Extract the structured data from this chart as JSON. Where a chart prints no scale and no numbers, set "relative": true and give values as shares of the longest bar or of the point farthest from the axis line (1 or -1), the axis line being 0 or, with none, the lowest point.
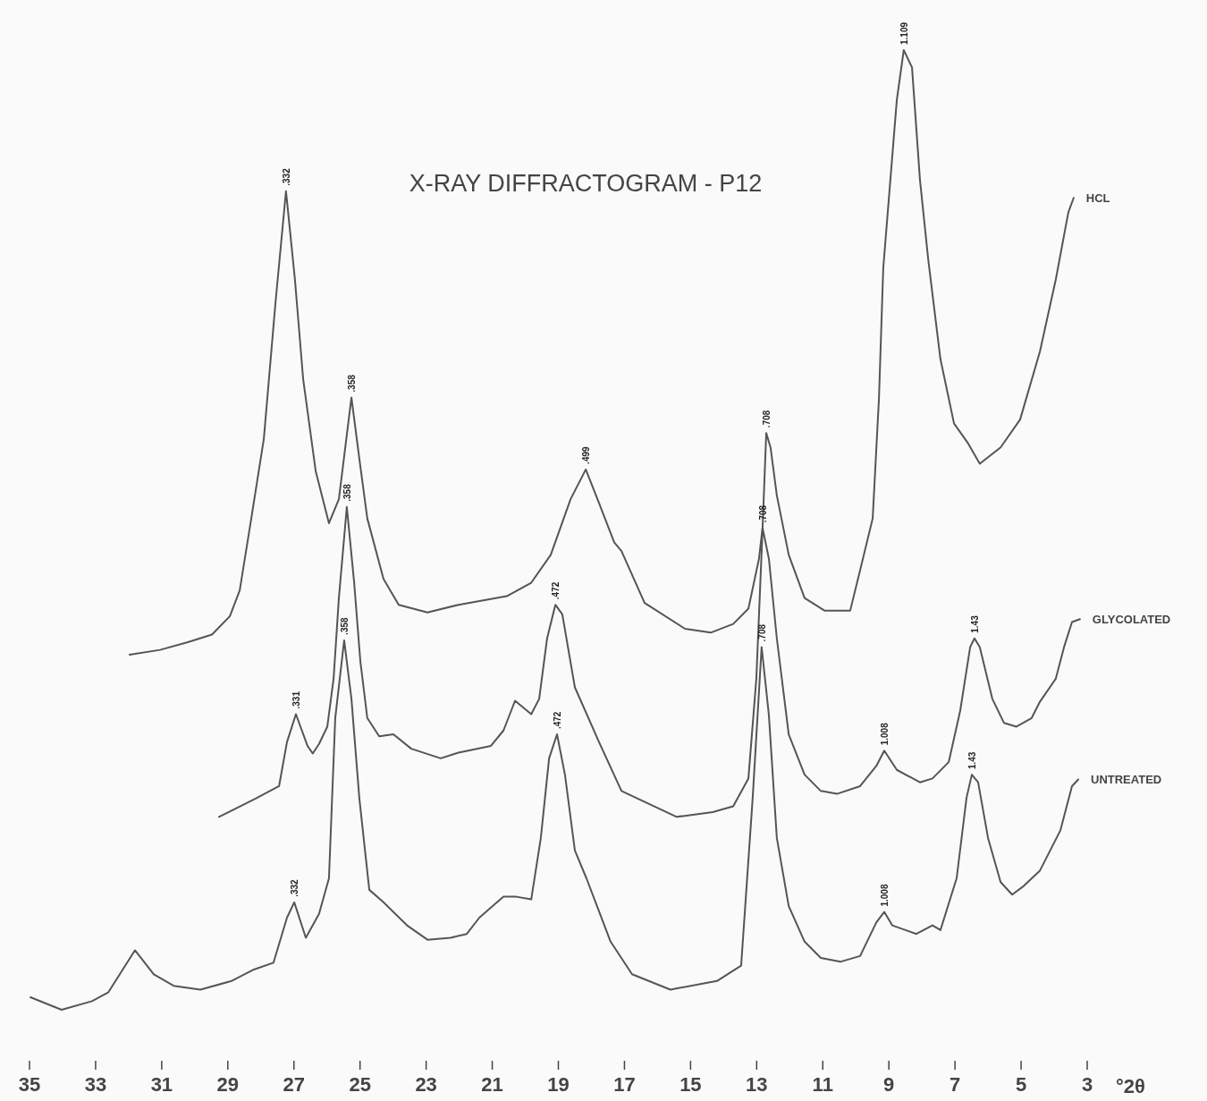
{
  "chart_data": {
    "type": "line",
    "title": "X-RAY DIFFRACTOGRAM - P12",
    "xlabel": "°2θ",
    "relative": true,
    "grid": false,
    "legend": false,
    "tick_labels": "x",
    "marker": "none",
    "line_style": "solid",
    "xlim": [
      35,
      3
    ],
    "xticks": [
      35,
      33,
      31,
      29,
      27,
      25,
      23,
      21,
      19,
      17,
      15,
      13,
      11,
      9,
      7,
      5,
      3
    ],
    "series": [
      {
        "name": "HCL",
        "color": "#555555",
        "x": [
          31.97,
          31.05,
          30.21,
          29.48,
          28.94,
          28.64,
          28.29,
          27.91,
          27.56,
          27.24,
          26.97,
          26.72,
          26.34,
          25.94,
          25.64,
          25.26,
          25.02,
          24.78,
          24.29,
          23.83,
          22.96,
          22.02,
          20.56,
          19.82,
          19.23,
          18.63,
          18.17,
          17.77,
          17.31,
          17.09,
          16.39,
          15.17,
          14.39,
          13.71,
          13.25,
          12.93,
          12.82,
          12.71,
          12.58,
          12.39,
          12.03,
          11.55,
          10.95,
          10.17,
          9.87,
          9.49,
          9.3,
          9.17,
          8.76,
          8.55,
          8.3,
          8.06,
          7.81,
          7.44,
          7.03,
          6.6,
          6.25,
          5.62,
          5.03,
          4.43,
          3.95,
          3.57,
          3.41
        ],
        "values": [
          0.37,
          0.375,
          0.383,
          0.391,
          0.41,
          0.437,
          0.512,
          0.595,
          0.736,
          0.853,
          0.761,
          0.657,
          0.561,
          0.507,
          0.532,
          0.638,
          0.574,
          0.512,
          0.449,
          0.422,
          0.414,
          0.422,
          0.431,
          0.445,
          0.474,
          0.532,
          0.563,
          0.528,
          0.487,
          0.478,
          0.424,
          0.397,
          0.393,
          0.402,
          0.418,
          0.47,
          0.503,
          0.601,
          0.586,
          0.536,
          0.474,
          0.429,
          0.416,
          0.416,
          0.458,
          0.512,
          0.637,
          0.773,
          0.948,
          1,
          0.982,
          0.865,
          0.782,
          0.678,
          0.611,
          0.59,
          0.569,
          0.586,
          0.615,
          0.686,
          0.761,
          0.831,
          0.846
        ]
      },
      {
        "name": "GLYCOLATED",
        "color": "#555555",
        "x": [
          29.27,
          28.16,
          27.45,
          27.21,
          26.94,
          26.59,
          26.43,
          26.24,
          25.99,
          25.8,
          25.64,
          25.4,
          25.18,
          24.99,
          24.78,
          24.42,
          23.99,
          23.45,
          22.56,
          22.02,
          21.04,
          20.66,
          20.31,
          19.82,
          19.58,
          19.34,
          19.09,
          18.88,
          18.5,
          17.77,
          17.09,
          15.42,
          14.33,
          13.71,
          13.25,
          13.01,
          12.82,
          12.63,
          12.39,
          12.03,
          11.55,
          11.06,
          10.57,
          9.87,
          9.38,
          9.14,
          8.76,
          8.06,
          7.68,
          7.19,
          6.84,
          6.54,
          6.41,
          6.25,
          5.87,
          5.52,
          5.14,
          4.68,
          4.43,
          3.95,
          3.7,
          3.46,
          3.22
        ],
        "values": [
          0.201,
          0.22,
          0.233,
          0.279,
          0.308,
          0.275,
          0.267,
          0.277,
          0.295,
          0.345,
          0.429,
          0.524,
          0.446,
          0.363,
          0.304,
          0.285,
          0.287,
          0.272,
          0.262,
          0.268,
          0.275,
          0.291,
          0.322,
          0.308,
          0.324,
          0.387,
          0.422,
          0.412,
          0.336,
          0.279,
          0.228,
          0.201,
          0.206,
          0.212,
          0.241,
          0.345,
          0.502,
          0.47,
          0.387,
          0.287,
          0.245,
          0.228,
          0.225,
          0.233,
          0.254,
          0.27,
          0.25,
          0.237,
          0.241,
          0.258,
          0.312,
          0.378,
          0.387,
          0.378,
          0.324,
          0.299,
          0.295,
          0.304,
          0.321,
          0.345,
          0.378,
          0.404,
          0.407
        ]
      },
      {
        "name": "UNTREATED",
        "color": "#555555",
        "x": [
          34.97,
          34.03,
          33.11,
          32.62,
          31.81,
          31.24,
          30.64,
          29.83,
          28.89,
          28.21,
          27.62,
          27.21,
          26.99,
          26.64,
          26.24,
          25.94,
          25.75,
          25.48,
          25.26,
          25.02,
          24.72,
          24.29,
          23.58,
          22.96,
          22.26,
          21.77,
          21.39,
          20.66,
          20.31,
          19.82,
          19.53,
          19.28,
          19.04,
          18.8,
          18.5,
          18.15,
          17.42,
          16.77,
          15.61,
          14.2,
          13.47,
          13.12,
          12.85,
          12.63,
          12.39,
          12.03,
          11.55,
          11.06,
          10.47,
          9.87,
          9.38,
          9.14,
          8.9,
          8.17,
          7.68,
          7.44,
          6.95,
          6.65,
          6.49,
          6.3,
          6.0,
          5.62,
          5.27,
          4.92,
          4.43,
          3.81,
          3.46,
          3.27
        ],
        "values": [
          0.013,
          0,
          0.009,
          0.018,
          0.062,
          0.037,
          0.025,
          0.021,
          0.03,
          0.042,
          0.049,
          0.096,
          0.112,
          0.075,
          0.1,
          0.137,
          0.304,
          0.385,
          0.324,
          0.22,
          0.125,
          0.112,
          0.088,
          0.073,
          0.075,
          0.079,
          0.096,
          0.118,
          0.118,
          0.115,
          0.179,
          0.262,
          0.287,
          0.245,
          0.166,
          0.137,
          0.071,
          0.037,
          0.021,
          0.03,
          0.046,
          0.221,
          0.378,
          0.307,
          0.179,
          0.108,
          0.071,
          0.054,
          0.05,
          0.056,
          0.091,
          0.102,
          0.088,
          0.079,
          0.088,
          0.083,
          0.137,
          0.221,
          0.245,
          0.237,
          0.179,
          0.133,
          0.12,
          0.129,
          0.145,
          0.187,
          0.233,
          0.24
        ]
      }
    ],
    "annotations": [
      {
        "text": ".332",
        "x": 27.24,
        "y": 0.853
      },
      {
        "text": ".358",
        "x": 25.26,
        "y": 0.638
      },
      {
        "text": ".499",
        "x": 18.17,
        "y": 0.563
      },
      {
        "text": ".708",
        "x": 12.71,
        "y": 0.601
      },
      {
        "text": "1.109",
        "x": 8.55,
        "y": 1
      },
      {
        "text": ".331",
        "x": 26.94,
        "y": 0.308
      },
      {
        "text": ".358",
        "x": 25.4,
        "y": 0.524
      },
      {
        "text": ".472",
        "x": 19.09,
        "y": 0.422
      },
      {
        "text": ".708",
        "x": 12.82,
        "y": 0.502
      },
      {
        "text": "1.008",
        "x": 9.14,
        "y": 0.27
      },
      {
        "text": "1.43",
        "x": 6.41,
        "y": 0.387
      },
      {
        "text": ".332",
        "x": 26.99,
        "y": 0.112
      },
      {
        "text": ".358",
        "x": 25.48,
        "y": 0.385
      },
      {
        "text": ".472",
        "x": 19.04,
        "y": 0.287
      },
      {
        "text": ".708",
        "x": 12.85,
        "y": 0.378
      },
      {
        "text": "1.008",
        "x": 9.14,
        "y": 0.102
      },
      {
        "text": "1.43",
        "x": 6.49,
        "y": 0.245
      }
    ]
  }
}
